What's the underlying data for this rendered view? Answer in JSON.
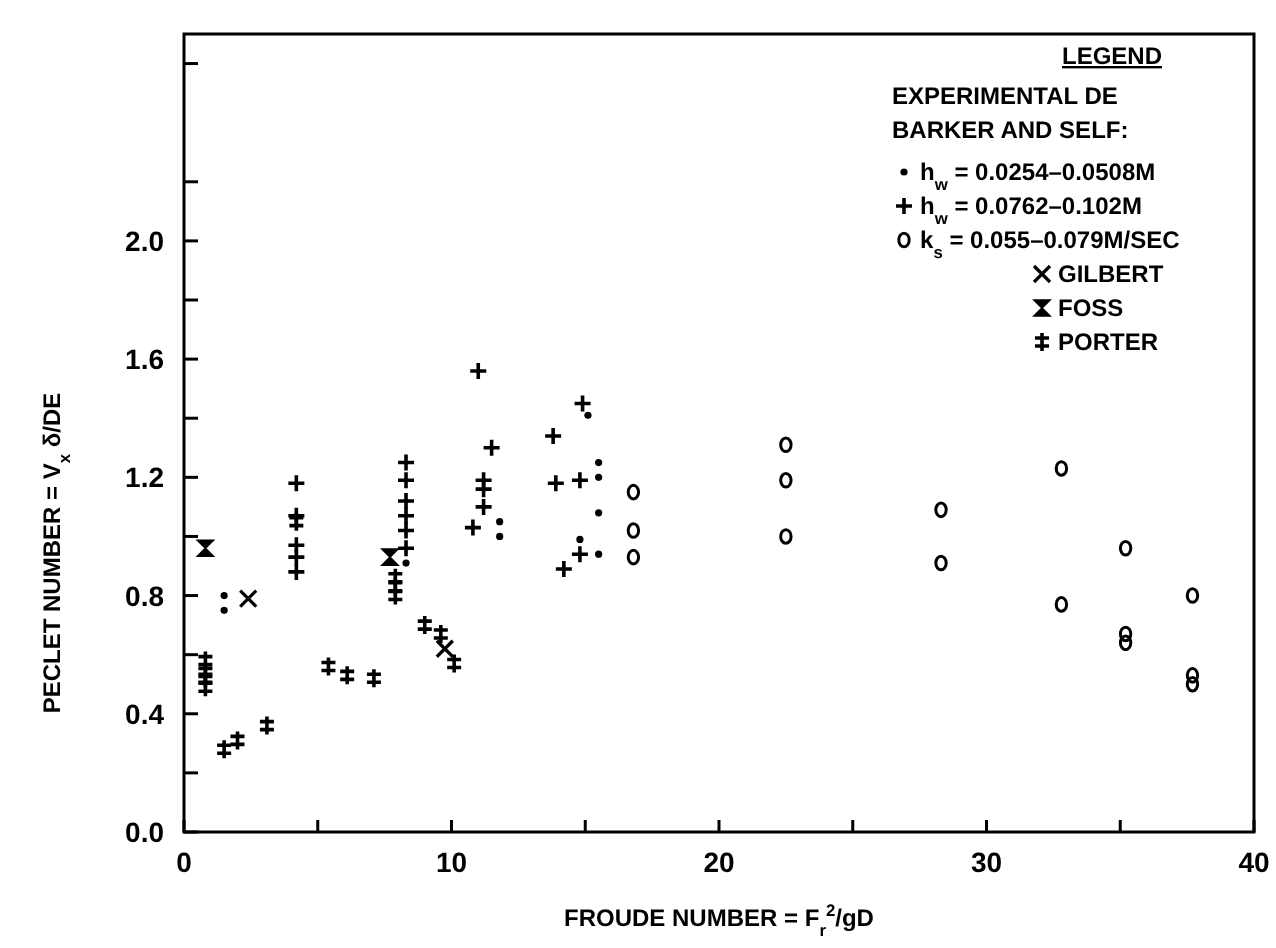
{
  "chart_data": {
    "type": "scatter",
    "xlabel": "FROUDE NUMBER = F$_{r}$$^{2}$/gD",
    "ylabel": "PECLET NUMBER = V$_{x}$ δ/DE",
    "legend_title": "LEGEND",
    "annotations": [
      "EXPERIMENTAL DE",
      "BARKER AND SELF:"
    ],
    "xlim": [
      0,
      40
    ],
    "xticks": [
      0,
      {
        "value": 5,
        "label": null
      },
      10,
      {
        "value": 15,
        "label": null
      },
      20,
      {
        "value": 25,
        "label": null
      },
      30,
      {
        "value": 35,
        "label": null
      },
      40
    ],
    "ylim": [
      0,
      2.7
    ],
    "yticks": [
      {
        "value": 0,
        "label": "0.0"
      },
      {
        "value": 0.2,
        "label": null
      },
      0.4,
      {
        "value": 0.6,
        "label": null
      },
      0.8,
      {
        "value": 1.0,
        "label": null
      },
      1.2,
      {
        "value": 1.4,
        "label": null
      },
      1.6,
      {
        "value": 1.8,
        "label": null
      },
      {
        "value": 2.0,
        "label": "2.0"
      },
      {
        "value": 2.2,
        "label": null
      },
      {
        "value": 2.6,
        "label": null
      }
    ],
    "legend": "top right",
    "grid": false,
    "series": [
      {
        "name": "h$_{w}$ = 0.0254–0.0508M",
        "marker": "circle",
        "color": "#000000",
        "x": [
          1.5,
          1.5,
          8.3,
          11.8,
          11.8,
          15.1,
          15.5,
          15.5,
          15.5,
          15.5,
          14.8
        ],
        "values": [
          0.8,
          0.75,
          0.91,
          1.05,
          1.0,
          1.41,
          1.25,
          1.2,
          1.08,
          0.94,
          0.99
        ]
      },
      {
        "name": "h$_{w}$ = 0.0762–0.102M",
        "marker": "cross",
        "color": "#000000",
        "x": [
          4.2,
          4.2,
          4.2,
          4.2,
          4.2,
          8.3,
          8.3,
          8.3,
          8.3,
          8.3,
          8.3,
          11.0,
          11.5,
          11.2,
          11.2,
          11.2,
          10.8,
          13.8,
          13.9,
          14.9,
          14.8,
          14.8,
          14.2
        ],
        "values": [
          1.18,
          1.07,
          0.97,
          0.93,
          0.88,
          1.25,
          1.19,
          1.12,
          1.07,
          1.02,
          0.96,
          1.56,
          1.3,
          1.19,
          1.16,
          1.1,
          1.03,
          1.34,
          1.18,
          1.45,
          1.19,
          0.94,
          0.89
        ]
      },
      {
        "name": "k$_{s}$ = 0.055–0.079M/SEC",
        "marker": "circle",
        "color": "#000000",
        "x": [
          16.8,
          16.8,
          16.8,
          22.5,
          22.5,
          22.5,
          28.3,
          28.3,
          32.8,
          32.8,
          35.2,
          35.2,
          35.2,
          37.7,
          37.7,
          37.7
        ],
        "values": [
          1.15,
          1.02,
          0.93,
          1.31,
          1.19,
          1.0,
          1.09,
          0.91,
          1.23,
          0.77,
          0.96,
          0.67,
          0.64,
          0.8,
          0.53,
          0.5
        ]
      },
      {
        "name": "GILBERT",
        "marker": "cross",
        "color": "#000000",
        "x": [
          2.4,
          9.75
        ],
        "values": [
          0.79,
          0.62
        ]
      },
      {
        "name": "FOSS",
        "marker": "diamond",
        "color": "#000000",
        "x": [
          0.8,
          7.7
        ],
        "values": [
          0.96,
          0.93
        ]
      },
      {
        "name": "PORTER",
        "marker": "cross",
        "color": "#000000",
        "x": [
          0.8,
          0.8,
          0.8,
          0.8,
          1.5,
          2.0,
          3.1,
          4.2,
          5.4,
          6.1,
          7.1,
          7.9,
          7.9,
          7.9,
          9.0,
          9.6,
          10.1
        ],
        "values": [
          0.58,
          0.54,
          0.52,
          0.49,
          0.28,
          0.31,
          0.36,
          1.05,
          0.56,
          0.53,
          0.52,
          0.86,
          0.83,
          0.8,
          0.7,
          0.67,
          0.57
        ]
      }
    ]
  }
}
